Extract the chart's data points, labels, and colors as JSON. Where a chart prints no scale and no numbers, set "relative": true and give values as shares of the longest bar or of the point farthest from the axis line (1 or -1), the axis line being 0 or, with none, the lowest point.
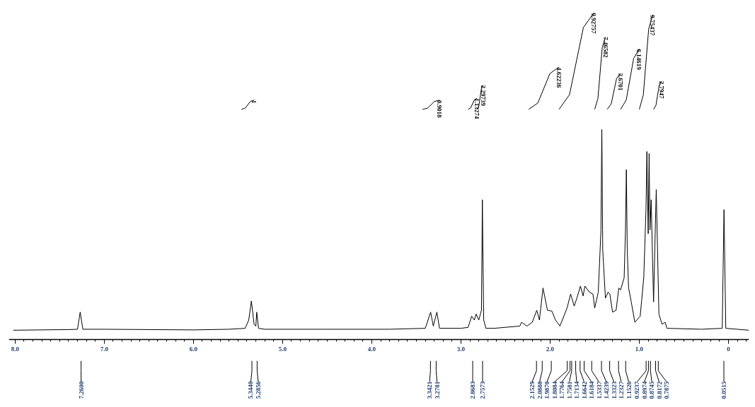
{
  "chart_data": {
    "type": "line",
    "relative": true,
    "xlim": [
      8.07,
      -0.23
    ],
    "xticks": [
      {
        "value": 8,
        "label": "8.0"
      },
      {
        "value": 7,
        "label": "7.0"
      },
      {
        "value": 6,
        "label": "6.0"
      },
      {
        "value": 5,
        "label": "5.0"
      },
      {
        "value": 4,
        "label": "4.0"
      },
      {
        "value": 3,
        "label": "3.0"
      },
      {
        "value": 2,
        "label": "2.0"
      },
      {
        "value": 1,
        "label": "1.0"
      },
      {
        "value": 0,
        "label": "0"
      }
    ],
    "grid": false,
    "tick_labels": "x",
    "series": [
      {
        "color": "#000000",
        "x": [
          8.02,
          7.4,
          7.3,
          7.27,
          7.24,
          7.0,
          6.0,
          5.6,
          5.42,
          5.38,
          5.35,
          5.32,
          5.3,
          5.29,
          5.27,
          5.2,
          4.5,
          3.8,
          3.4,
          3.34,
          3.31,
          3.27,
          3.24,
          3.0,
          2.92,
          2.88,
          2.85,
          2.83,
          2.8,
          2.77,
          2.76,
          2.745,
          2.72,
          2.63,
          2.34,
          2.32,
          2.26,
          2.2,
          2.15,
          2.12,
          2.08,
          2.03,
          1.98,
          1.94,
          1.89,
          1.81,
          1.77,
          1.73,
          1.7,
          1.66,
          1.63,
          1.61,
          1.56,
          1.52,
          1.5,
          1.46,
          1.43,
          1.42,
          1.41,
          1.38,
          1.35,
          1.33,
          1.3,
          1.26,
          1.23,
          1.21,
          1.17,
          1.155,
          1.145,
          1.135,
          1.12,
          1.09,
          1.05,
          0.99,
          0.95,
          0.925,
          0.915,
          0.9,
          0.89,
          0.88,
          0.867,
          0.84,
          0.81,
          0.78,
          0.745,
          0.71,
          0.69,
          0.3,
          0.07,
          0.05,
          0.03,
          -0.23
        ],
        "values": [
          0,
          0.002,
          0.003,
          0.057,
          0.003,
          0.003,
          0.001,
          0.003,
          0.006,
          0.032,
          0.092,
          0.019,
          0.013,
          0.057,
          0.006,
          0.003,
          0.003,
          0.003,
          0.006,
          0.057,
          0.013,
          0.057,
          0.006,
          0.006,
          0.009,
          0.044,
          0.032,
          0.051,
          0.032,
          0.063,
          0.411,
          0.032,
          0.006,
          0.006,
          0.013,
          0.025,
          0.013,
          0.025,
          0.063,
          0.032,
          0.133,
          0.063,
          0.06,
          0.032,
          0.013,
          0.07,
          0.114,
          0.076,
          0.101,
          0.139,
          0.108,
          0.139,
          0.12,
          0.114,
          0.07,
          0.12,
          0.316,
          0.633,
          0.253,
          0.101,
          0.12,
          0.114,
          0.057,
          0.063,
          0.133,
          0.127,
          0.165,
          0.316,
          0.506,
          0.253,
          0.133,
          0.089,
          0.025,
          0.044,
          0.165,
          0.38,
          0.563,
          0.304,
          0.557,
          0.316,
          0.411,
          0.089,
          0.443,
          0.051,
          0.019,
          0.025,
          0.006,
          0.003,
          0.006,
          0.38,
          0.006,
          0
        ]
      },
      {
        "name": "1",
        "color": "#000000",
        "x": [
          5.46,
          5.418,
          5.362,
          5.32
        ],
        "values": [
          0.696,
          0.7,
          0.721,
          0.725
        ]
      },
      {
        "name": "0.9018",
        "color": "#000000",
        "x": [
          3.43,
          3.373,
          3.297,
          3.24
        ],
        "values": [
          0.696,
          0.7,
          0.721,
          0.725
        ]
      },
      {
        "name": "1.13274",
        "color": "#000000",
        "x": [
          2.92,
          2.89,
          2.85,
          2.82
        ],
        "values": [
          0.696,
          0.701,
          0.726,
          0.731
        ]
      },
      {
        "name": "2.29739",
        "color": "#000000",
        "x": [
          2.82,
          2.799,
          2.771,
          2.75
        ],
        "values": [
          0.696,
          0.707,
          0.761,
          0.772
        ]
      },
      {
        "name": "4.62236",
        "color": "#000000",
        "x": [
          2.24,
          2.138,
          2.002,
          1.9
        ],
        "values": [
          0.696,
          0.716,
          0.809,
          0.829
        ]
      },
      {
        "name": "9.92757",
        "color": "#000000",
        "x": [
          1.9,
          1.783,
          1.627,
          1.51
        ],
        "values": [
          0.696,
          0.742,
          0.954,
          1.0
        ]
      },
      {
        "name": "7.46582",
        "color": "#000000",
        "x": [
          1.5,
          1.464,
          1.416,
          1.38
        ],
        "values": [
          0.696,
          0.73,
          0.89,
          0.924
        ]
      },
      {
        "name": "3.6701",
        "color": "#000000",
        "x": [
          1.36,
          1.315,
          1.255,
          1.21
        ],
        "values": [
          0.696,
          0.713,
          0.793,
          0.81
        ]
      },
      {
        "name": "6.14619",
        "color": "#000000",
        "x": [
          1.21,
          1.147,
          1.063,
          1.0
        ],
        "values": [
          0.696,
          0.725,
          0.857,
          0.886
        ]
      },
      {
        "name": "9.75437",
        "color": "#000000",
        "x": [
          1.0,
          0.955,
          0.895,
          0.85
        ],
        "values": [
          0.696,
          0.741,
          0.949,
          0.994
        ]
      },
      {
        "name": "2.7947",
        "color": "#000000",
        "x": [
          0.84,
          0.813,
          0.777,
          0.75
        ],
        "values": [
          0.696,
          0.709,
          0.772,
          0.785
        ]
      }
    ],
    "annotations": [
      {
        "text": "7.2600",
        "x": 7.26
      },
      {
        "text": "5.3440",
        "x": 5.344
      },
      {
        "text": "5.2856",
        "x": 5.2856
      },
      {
        "text": "3.3421",
        "x": 3.3421
      },
      {
        "text": "3.2781",
        "x": 3.2781
      },
      {
        "text": "2.8683",
        "x": 2.8683
      },
      {
        "text": "2.7573",
        "x": 2.7573
      },
      {
        "text": "2.1529",
        "x": 2.1529
      },
      {
        "text": "2.0888",
        "x": 2.0888
      },
      {
        "text": "1.9870",
        "x": 1.987
      },
      {
        "text": "1.8084",
        "x": 1.8084
      },
      {
        "text": "1.7764",
        "x": 1.7764
      },
      {
        "text": "1.7581",
        "x": 1.7581
      },
      {
        "text": "1.7134",
        "x": 1.7134
      },
      {
        "text": "1.6642",
        "x": 1.6642
      },
      {
        "text": "1.6184",
        "x": 1.6184
      },
      {
        "text": "1.5337",
        "x": 1.5337
      },
      {
        "text": "1.4239",
        "x": 1.4239
      },
      {
        "text": "1.3323",
        "x": 1.3323
      },
      {
        "text": "1.2327",
        "x": 1.2327
      },
      {
        "text": "1.1526",
        "x": 1.1526
      },
      {
        "text": "0.9237",
        "x": 0.9237
      },
      {
        "text": "0.8974",
        "x": 0.8974
      },
      {
        "text": "0.8745",
        "x": 0.8745
      },
      {
        "text": "0.8172",
        "x": 0.8172
      },
      {
        "text": "0.7875",
        "x": 0.7875
      },
      {
        "text": "0.0515",
        "x": 0.0515
      }
    ]
  }
}
